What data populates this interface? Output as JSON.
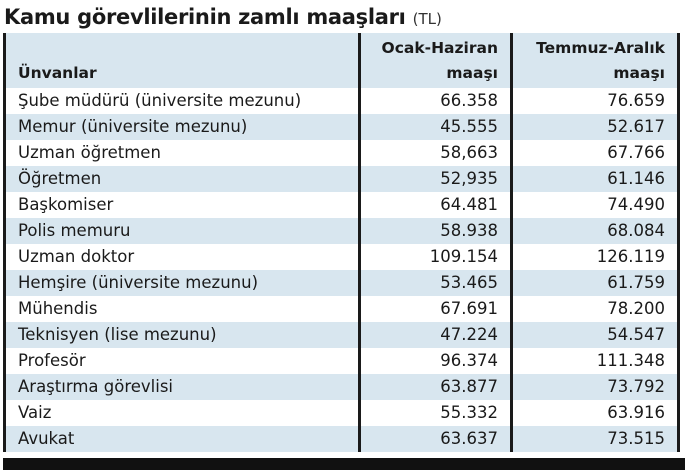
{
  "title": {
    "main": "Kamu görevlilerinin zamlı maaşları",
    "unit": "(TL)"
  },
  "table": {
    "headers": {
      "col1": "Ünvanlar",
      "col2_line1": "Ocak-Haziran",
      "col2_line2": "maaşı",
      "col3_line1": "Temmuz-Aralık",
      "col3_line2": "maaşı"
    },
    "rows": [
      {
        "title": "Şube müdürü (üniversite mezunu)",
        "jan_jun": "66.358",
        "jul_dec": "76.659"
      },
      {
        "title": "Memur (üniversite mezunu)",
        "jan_jun": "45.555",
        "jul_dec": "52.617"
      },
      {
        "title": "Uzman öğretmen",
        "jan_jun": "58,663",
        "jul_dec": "67.766"
      },
      {
        "title": "Öğretmen",
        "jan_jun": "52,935",
        "jul_dec": "61.146"
      },
      {
        "title": "Başkomiser",
        "jan_jun": "64.481",
        "jul_dec": "74.490"
      },
      {
        "title": "Polis memuru",
        "jan_jun": "58.938",
        "jul_dec": "68.084"
      },
      {
        "title": "Uzman doktor",
        "jan_jun": "109.154",
        "jul_dec": "126.119"
      },
      {
        "title": "Hemşire (üniversite mezunu)",
        "jan_jun": "53.465",
        "jul_dec": "61.759"
      },
      {
        "title": "Mühendis",
        "jan_jun": "67.691",
        "jul_dec": "78.200"
      },
      {
        "title": "Teknisyen (lise mezunu)",
        "jan_jun": "47.224",
        "jul_dec": "54.547"
      },
      {
        "title": "Profesör",
        "jan_jun": "96.374",
        "jul_dec": "111.348"
      },
      {
        "title": "Araştırma görevlisi",
        "jan_jun": "63.877",
        "jul_dec": "73.792"
      },
      {
        "title": "Vaiz",
        "jan_jun": "55.332",
        "jul_dec": "63.916"
      },
      {
        "title": "Avukat",
        "jan_jun": "63.637",
        "jul_dec": "73.515"
      }
    ]
  },
  "colors": {
    "row_alt": "#d8e6ef",
    "border": "#1a1a1a",
    "bottom_bar": "#111111"
  }
}
